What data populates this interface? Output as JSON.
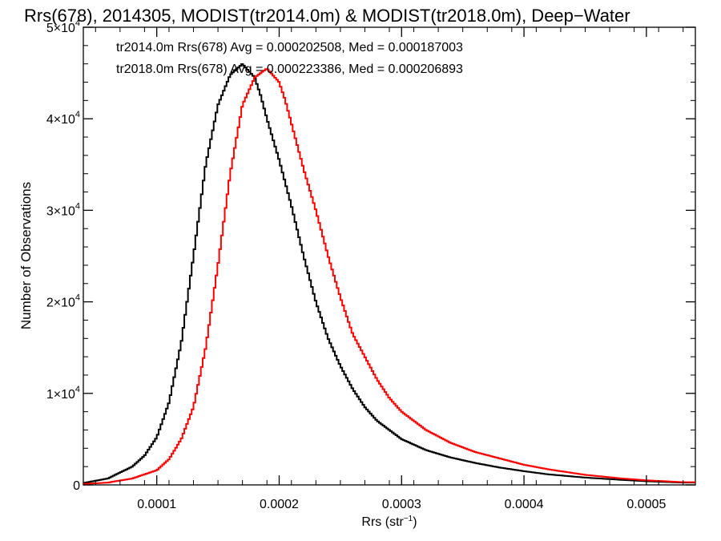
{
  "chart_data": {
    "type": "histogram",
    "title": "Rrs(678), 2014305, MODIST(tr2014.0m) & MODIST(tr2018.0m), Deep−Water",
    "xlabel": "Rrs (str",
    "xlabel_sup": "−1",
    "xlabel_close": ")",
    "ylabel": "Number of Observations",
    "xlim": [
      4e-05,
      0.00054
    ],
    "ylim": [
      0,
      50000
    ],
    "x_ticks": [
      0.0001,
      0.0002,
      0.0003,
      0.0004,
      0.0005
    ],
    "x_tick_labels": [
      "0.0001",
      "0.0002",
      "0.0003",
      "0.0004",
      "0.0005"
    ],
    "y_ticks": [
      0,
      10000,
      20000,
      30000,
      40000,
      50000
    ],
    "y_tick_labels": [
      {
        "base": "0",
        "exp": ""
      },
      {
        "base": "1×10",
        "exp": "4"
      },
      {
        "base": "2×10",
        "exp": "4"
      },
      {
        "base": "3×10",
        "exp": "4"
      },
      {
        "base": "4×10",
        "exp": "4"
      },
      {
        "base": "5×10",
        "exp": "4"
      }
    ],
    "annotations": [
      {
        "text": "tr2014.0m Rrs(678) Avg = 0.000202508, Med = 0.000187003",
        "color": "#000000"
      },
      {
        "text": "tr2018.0m Rrs(678) Avg = 0.000223386, Med = 0.000206893",
        "color": "#ff0000"
      }
    ],
    "series": [
      {
        "color": "#000000",
        "x": [
          4e-05,
          6e-05,
          8e-05,
          9e-05,
          0.0001,
          0.00011,
          0.00012,
          0.00013,
          0.00014,
          0.00015,
          0.00016,
          0.00017,
          0.00018,
          0.000185,
          0.00019,
          0.0002,
          0.00021,
          0.00022,
          0.00023,
          0.00024,
          0.00025,
          0.00026,
          0.00027,
          0.00028,
          0.0003,
          0.00032,
          0.00034,
          0.00036,
          0.00038,
          0.0004,
          0.00042,
          0.00045,
          0.00048,
          0.0005,
          0.00053
        ],
        "y": [
          200,
          700,
          2000,
          3200,
          5200,
          9000,
          15500,
          25000,
          35000,
          41500,
          44800,
          46000,
          44500,
          42500,
          40000,
          35500,
          30500,
          25000,
          20000,
          16000,
          13000,
          10500,
          8500,
          7000,
          5000,
          3800,
          3000,
          2400,
          1900,
          1500,
          1150,
          800,
          550,
          400,
          250
        ]
      },
      {
        "color": "#ff0000",
        "x": [
          4e-05,
          6e-05,
          8e-05,
          0.0001,
          0.00011,
          0.00012,
          0.00013,
          0.00014,
          0.00015,
          0.00016,
          0.00017,
          0.00018,
          0.00019,
          0.0002,
          0.000205,
          0.00021,
          0.00022,
          0.00023,
          0.00024,
          0.00025,
          0.00026,
          0.00027,
          0.00028,
          0.00029,
          0.0003,
          0.00032,
          0.00034,
          0.00036,
          0.00038,
          0.0004,
          0.00042,
          0.00045,
          0.00048,
          0.0005,
          0.00053
        ],
        "y": [
          100,
          250,
          700,
          1600,
          2800,
          5000,
          8500,
          15000,
          24000,
          34000,
          41500,
          44500,
          45500,
          44000,
          42000,
          39500,
          34500,
          30000,
          25000,
          20500,
          16500,
          14000,
          11500,
          9500,
          8000,
          6000,
          4600,
          3600,
          2900,
          2200,
          1700,
          1100,
          700,
          500,
          300
        ]
      }
    ]
  }
}
